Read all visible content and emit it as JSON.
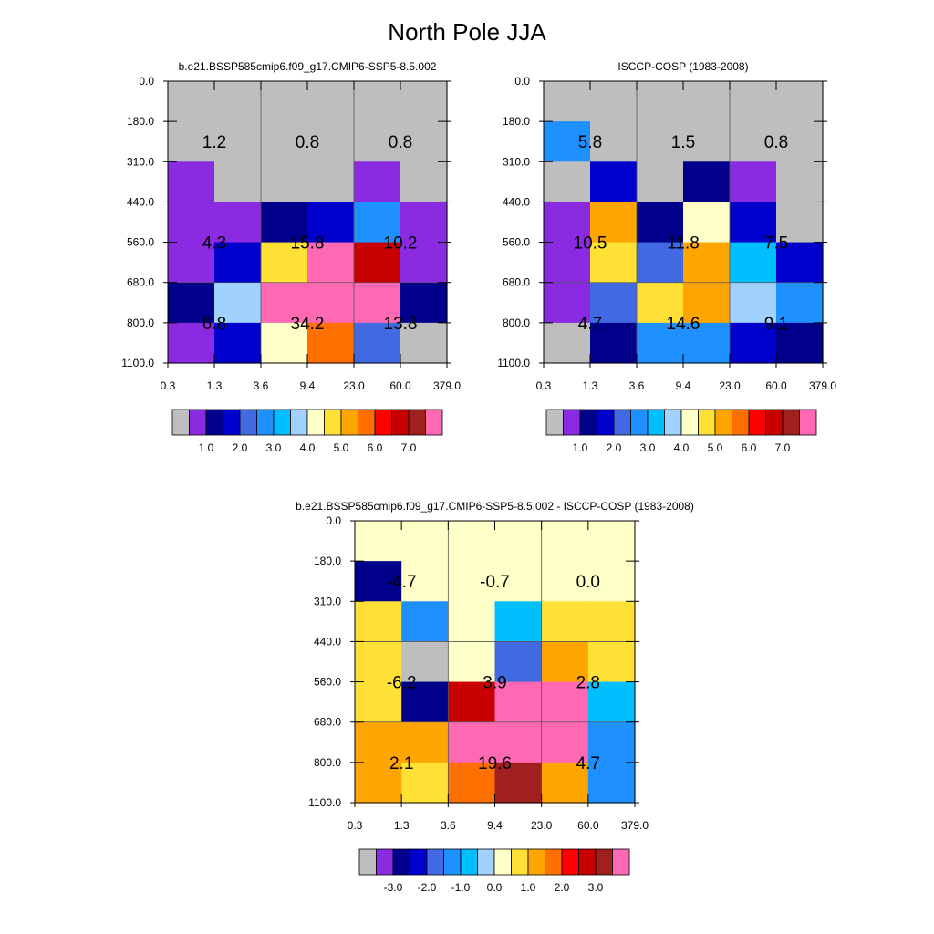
{
  "title": "North Pole JJA",
  "chart_data": [
    {
      "type": "heatmap",
      "title": "b.e21.BSSP585cmip6.f09_g17.CMIP6-SSP5-8.5.002",
      "x_ticks": [
        "0.3",
        "1.3",
        "3.6",
        "9.4",
        "23.0",
        "60.0",
        "379.0"
      ],
      "y_ticks": [
        "0.0",
        "180.0",
        "310.0",
        "440.0",
        "560.0",
        "680.0",
        "800.0",
        "1100.0"
      ],
      "cells": [
        [
          0,
          0,
          0,
          0,
          0,
          0
        ],
        [
          0,
          0,
          0,
          0,
          0,
          0
        ],
        [
          1,
          0,
          0,
          0,
          1,
          0
        ],
        [
          1,
          1,
          2,
          3,
          5,
          1
        ],
        [
          1,
          3,
          9,
          16,
          13,
          1
        ],
        [
          2,
          7,
          16,
          16,
          16,
          2
        ],
        [
          1,
          3,
          8,
          11,
          4,
          0
        ]
      ],
      "block_labels": [
        [
          "1.2",
          "0.8",
          "0.8"
        ],
        [
          "4.3",
          "15.8",
          "10.2"
        ],
        [
          "6.8",
          "34.2",
          "13.8"
        ]
      ],
      "colorbar_labels": [
        "1.0",
        "2.0",
        "3.0",
        "4.0",
        "5.0",
        "6.0",
        "7.0"
      ]
    },
    {
      "type": "heatmap",
      "title": "ISCCP-COSP (1983-2008)",
      "x_ticks": [
        "0.3",
        "1.3",
        "3.6",
        "9.4",
        "23.0",
        "60.0",
        "379.0"
      ],
      "y_ticks": [
        "0.0",
        "180.0",
        "310.0",
        "440.0",
        "560.0",
        "680.0",
        "800.0",
        "1100.0"
      ],
      "cells": [
        [
          0,
          0,
          0,
          0,
          0,
          0
        ],
        [
          5,
          0,
          0,
          0,
          0,
          0
        ],
        [
          0,
          3,
          0,
          2,
          1,
          0
        ],
        [
          1,
          10,
          2,
          8,
          3,
          0
        ],
        [
          1,
          9,
          4,
          10,
          6,
          3
        ],
        [
          1,
          4,
          9,
          10,
          7,
          5
        ],
        [
          0,
          2,
          5,
          5,
          3,
          2
        ]
      ],
      "block_labels": [
        [
          "5.8",
          "1.5",
          "0.8"
        ],
        [
          "10.5",
          "11.8",
          "7.5"
        ],
        [
          "4.7",
          "14.6",
          "9.1"
        ]
      ],
      "colorbar_labels": [
        "1.0",
        "2.0",
        "3.0",
        "4.0",
        "5.0",
        "6.0",
        "7.0"
      ]
    },
    {
      "type": "heatmap",
      "title": "b.e21.BSSP585cmip6.f09_g17.CMIP6-SSP5-8.5.002 - ISCCP-COSP (1983-2008)",
      "x_ticks": [
        "0.3",
        "1.3",
        "3.6",
        "9.4",
        "23.0",
        "60.0",
        "379.0"
      ],
      "y_ticks": [
        "0.0",
        "180.0",
        "310.0",
        "440.0",
        "560.0",
        "680.0",
        "800.0",
        "1100.0"
      ],
      "cells": [
        [
          8,
          8,
          8,
          8,
          8,
          8
        ],
        [
          2,
          8,
          8,
          8,
          8,
          8
        ],
        [
          9,
          5,
          8,
          6,
          9,
          9
        ],
        [
          9,
          0,
          8,
          4,
          10,
          9
        ],
        [
          9,
          2,
          13,
          16,
          15,
          6
        ],
        [
          10,
          10,
          16,
          16,
          16,
          5
        ],
        [
          10,
          9,
          11,
          14,
          10,
          5
        ]
      ],
      "block_labels": [
        [
          "-4.7",
          "-0.7",
          "0.0"
        ],
        [
          "-6.2",
          "3.9",
          "2.8"
        ],
        [
          "2.1",
          "19.6",
          "4.7"
        ]
      ],
      "colorbar_labels": [
        "-3.0",
        "-2.0",
        "-1.0",
        "0.0",
        "1.0",
        "2.0",
        "3.0"
      ]
    }
  ],
  "colors": {
    "palette": [
      "#bebebe",
      "#8a2be2",
      "#00008b",
      "#0000cd",
      "#4169e1",
      "#1e90ff",
      "#00bfff",
      "#a0d1ff",
      "#ffffc8",
      "#ffe135",
      "#ffa500",
      "#ff7000",
      "#ff0000",
      "#c80000",
      "#a02020",
      "#ff69b4",
      "#ff69b4"
    ],
    "colorbar_palette": [
      "#bebebe",
      "#8a2be2",
      "#00008b",
      "#0000cd",
      "#4169e1",
      "#1e90ff",
      "#00bfff",
      "#a0d1ff",
      "#ffffc8",
      "#ffe135",
      "#ffa500",
      "#ff7000",
      "#ff0000",
      "#c80000",
      "#a02020",
      "#ff69b4"
    ]
  }
}
